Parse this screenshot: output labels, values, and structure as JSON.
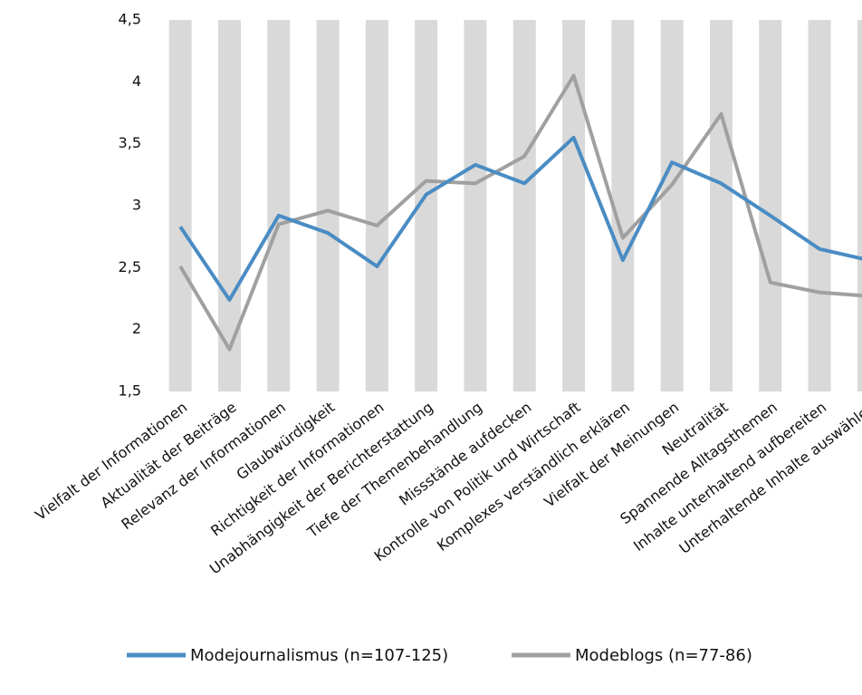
{
  "chart_data": {
    "type": "line",
    "categories": [
      "Vielfalt der Informationen",
      "Aktualität der Beiträge",
      "Relevanz der Informationen",
      "Glaubwürdigkeit",
      "Richtigkeit der Informationen",
      "Unabhängigkeit der Berichterstattung",
      "Tiefe der Themenbehandlung",
      "Missstände aufdecken",
      "Kontrolle von Politik und Wirtschaft",
      "Komplexes verständlich erklären",
      "Vielfalt der Meinungen",
      "Neutralität",
      "Spannende Alltagsthemen",
      "Inhalte unterhaltend aufbereiten",
      "Unterhaltende Inhalte auswählen"
    ],
    "series": [
      {
        "name": "Modejournalismus (n=107-125)",
        "color": "#4a8cc4",
        "values": [
          2.83,
          2.24,
          2.92,
          2.78,
          2.51,
          3.09,
          3.33,
          3.18,
          3.55,
          2.56,
          3.35,
          3.18,
          2.92,
          2.65,
          2.56
        ]
      },
      {
        "name": "Modeblogs (n=77-86)",
        "color": "#a0a0a0",
        "values": [
          2.51,
          1.84,
          2.85,
          2.96,
          2.84,
          3.2,
          3.18,
          3.4,
          4.05,
          2.74,
          3.17,
          3.74,
          2.38,
          2.3,
          2.27
        ]
      }
    ],
    "ylim": [
      1.5,
      4.5
    ],
    "yticks": [
      {
        "value": 1.5,
        "label": "1,5"
      },
      2,
      {
        "value": 2.5,
        "label": "2,5"
      },
      3,
      {
        "value": 3.5,
        "label": "3,5"
      },
      4,
      {
        "value": 4.5,
        "label": "4,5"
      }
    ],
    "band_color": "#d9d9d9",
    "legend": "bottom"
  }
}
